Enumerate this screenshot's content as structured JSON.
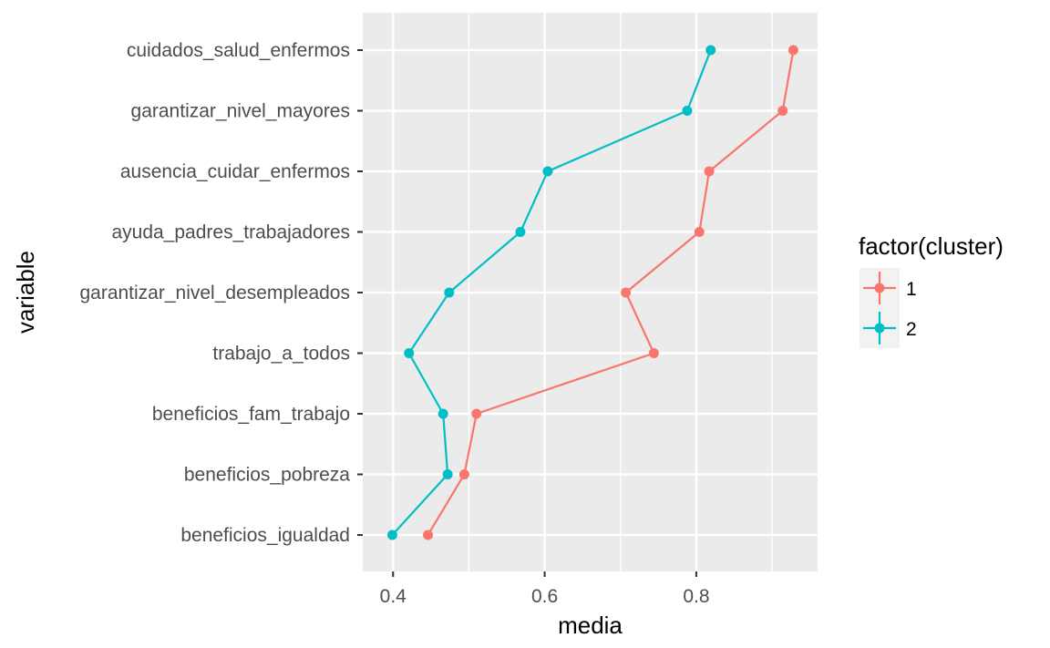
{
  "chart_data": {
    "type": "line",
    "xlabel": "media",
    "ylabel": "variable",
    "xlim": [
      0.36,
      0.96
    ],
    "xticks": [
      0.4,
      0.6,
      0.8
    ],
    "x_tick_labels": [
      "0.4",
      "0.6",
      "0.8"
    ],
    "categories": [
      "cuidados_salud_enfermos",
      "garantizar_nivel_mayores",
      "ausencia_cuidar_enfermos",
      "ayuda_padres_trabajadores",
      "garantizar_nivel_desempleados",
      "trabajo_a_todos",
      "beneficios_fam_trabajo",
      "beneficios_pobreza",
      "beneficios_igualdad"
    ],
    "series": [
      {
        "name": "1",
        "color": "#F8766D",
        "values": [
          0.928,
          0.914,
          0.817,
          0.804,
          0.707,
          0.744,
          0.51,
          0.494,
          0.446
        ]
      },
      {
        "name": "2",
        "color": "#00BFC4",
        "values": [
          0.819,
          0.788,
          0.604,
          0.568,
          0.474,
          0.421,
          0.466,
          0.472,
          0.399
        ]
      }
    ],
    "legend": {
      "title": "factor(cluster)",
      "position": "right"
    },
    "grid": true,
    "panel_background": "#EBEBEB"
  }
}
